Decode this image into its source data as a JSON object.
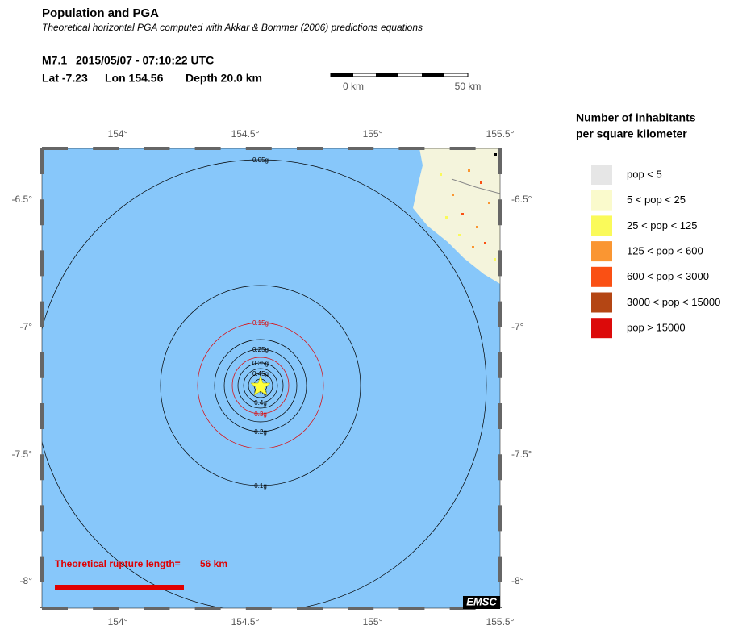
{
  "header": {
    "title": "Population and PGA",
    "subtitle": "Theoretical horizontal PGA computed with Akkar & Bommer (2006) predictions equations",
    "event": {
      "magnitude": "M7.1",
      "datetime": "2015/05/07 - 07:10:22 UTC",
      "lat": "Lat -7.23",
      "lon": "Lon 154.56",
      "depth": "Depth  20.0 km"
    }
  },
  "scale_bar": {
    "start": "0 km",
    "end": "50 km"
  },
  "map": {
    "lon_ticks": [
      "154°",
      "154.5°",
      "155°",
      "155.5°"
    ],
    "lat_ticks": [
      "-6.5°",
      "-7°",
      "-7.5°",
      "-8°"
    ],
    "contours": [
      {
        "label": "0.05g",
        "color": "#000000"
      },
      {
        "label": "0.1g",
        "color": "#000000"
      },
      {
        "label": "0.15g",
        "color": "#e00000"
      },
      {
        "label": "0.2g",
        "color": "#000000"
      },
      {
        "label": "0.25g",
        "color": "#000000"
      },
      {
        "label": "0.3g",
        "color": "#e00000"
      },
      {
        "label": "0.35g",
        "color": "#000000"
      },
      {
        "label": "0.4g",
        "color": "#000000"
      },
      {
        "label": "0.45g",
        "color": "#000000"
      },
      {
        "label": "0.5g",
        "color": "#000000"
      }
    ],
    "rupture": {
      "label": "Theoretical rupture length=",
      "length": "56 km"
    },
    "logo": "EMSC"
  },
  "legend": {
    "title": [
      "Number of inhabitants",
      "per square kilometer"
    ],
    "items": [
      {
        "label": "pop < 5",
        "color": "#e6e6e6"
      },
      {
        "label": "5 < pop < 25",
        "color": "#fafacc"
      },
      {
        "label": "25 < pop < 125",
        "color": "#fafa5a"
      },
      {
        "label": "125 < pop < 600",
        "color": "#fa9632"
      },
      {
        "label": "600 < pop < 3000",
        "color": "#fa5014"
      },
      {
        "label": "3000 < pop < 15000",
        "color": "#b44614"
      },
      {
        "label": "pop > 15000",
        "color": "#dc0a0a"
      }
    ]
  }
}
